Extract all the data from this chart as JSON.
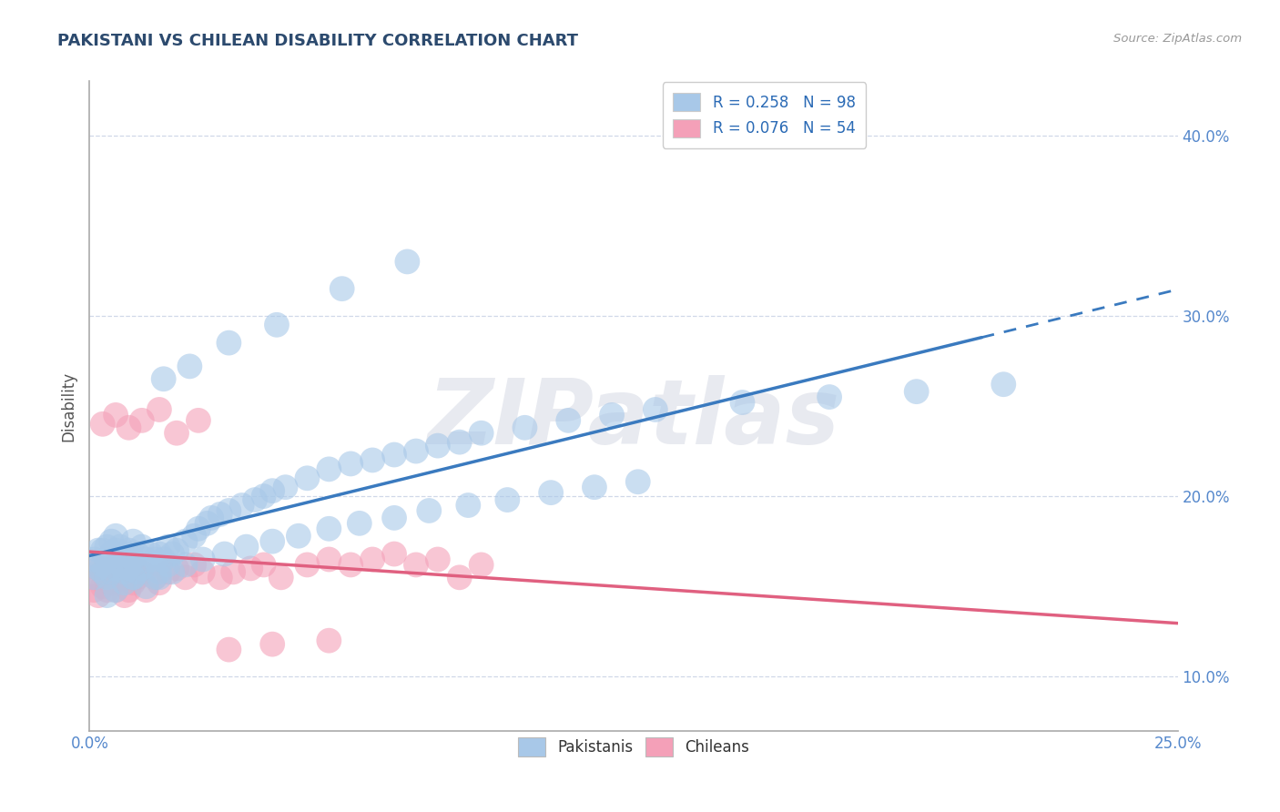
{
  "title": "PAKISTANI VS CHILEAN DISABILITY CORRELATION CHART",
  "source": "Source: ZipAtlas.com",
  "xlim": [
    0.0,
    0.25
  ],
  "ylim": [
    0.07,
    0.43
  ],
  "ylabel": "Disability",
  "r_pakistani": 0.258,
  "n_pakistani": 98,
  "r_chilean": 0.076,
  "n_chilean": 54,
  "color_pakistani_scatter": "#a8c8e8",
  "color_chilean_scatter": "#f4a0b8",
  "color_pakistani_line": "#3a7abf",
  "color_chilean_line": "#e06080",
  "color_title": "#2c4a6e",
  "color_source": "#999999",
  "color_axis_ticks": "#5588cc",
  "color_legend_text": "#2a6ab5",
  "color_grid": "#d0d8e8",
  "background_color": "#ffffff",
  "watermark": "ZIPatlas",
  "watermark_color": "#e8eaf0",
  "pakistani_x": [
    0.001,
    0.001,
    0.002,
    0.002,
    0.003,
    0.003,
    0.003,
    0.004,
    0.004,
    0.004,
    0.005,
    0.005,
    0.005,
    0.006,
    0.006,
    0.006,
    0.007,
    0.007,
    0.008,
    0.008,
    0.009,
    0.009,
    0.01,
    0.01,
    0.01,
    0.011,
    0.011,
    0.012,
    0.012,
    0.013,
    0.014,
    0.015,
    0.015,
    0.016,
    0.016,
    0.017,
    0.018,
    0.018,
    0.019,
    0.02,
    0.022,
    0.024,
    0.025,
    0.027,
    0.028,
    0.03,
    0.032,
    0.035,
    0.038,
    0.04,
    0.042,
    0.045,
    0.05,
    0.055,
    0.06,
    0.065,
    0.07,
    0.075,
    0.08,
    0.085,
    0.09,
    0.1,
    0.11,
    0.12,
    0.13,
    0.15,
    0.17,
    0.19,
    0.21,
    0.004,
    0.006,
    0.008,
    0.01,
    0.013,
    0.016,
    0.019,
    0.022,
    0.026,
    0.031,
    0.036,
    0.042,
    0.048,
    0.055,
    0.062,
    0.07,
    0.078,
    0.087,
    0.096,
    0.106,
    0.116,
    0.126,
    0.017,
    0.023,
    0.032,
    0.043,
    0.058,
    0.073
  ],
  "pakistani_y": [
    0.155,
    0.165,
    0.16,
    0.17,
    0.158,
    0.162,
    0.17,
    0.155,
    0.165,
    0.172,
    0.158,
    0.168,
    0.175,
    0.16,
    0.17,
    0.178,
    0.162,
    0.172,
    0.158,
    0.168,
    0.16,
    0.17,
    0.155,
    0.165,
    0.175,
    0.158,
    0.168,
    0.16,
    0.172,
    0.165,
    0.168,
    0.155,
    0.165,
    0.158,
    0.168,
    0.165,
    0.162,
    0.172,
    0.168,
    0.17,
    0.175,
    0.178,
    0.182,
    0.185,
    0.188,
    0.19,
    0.192,
    0.195,
    0.198,
    0.2,
    0.203,
    0.205,
    0.21,
    0.215,
    0.218,
    0.22,
    0.223,
    0.225,
    0.228,
    0.23,
    0.235,
    0.238,
    0.242,
    0.245,
    0.248,
    0.252,
    0.255,
    0.258,
    0.262,
    0.145,
    0.148,
    0.152,
    0.155,
    0.15,
    0.155,
    0.158,
    0.162,
    0.165,
    0.168,
    0.172,
    0.175,
    0.178,
    0.182,
    0.185,
    0.188,
    0.192,
    0.195,
    0.198,
    0.202,
    0.205,
    0.208,
    0.265,
    0.272,
    0.285,
    0.295,
    0.315,
    0.33
  ],
  "chilean_x": [
    0.001,
    0.001,
    0.002,
    0.002,
    0.003,
    0.003,
    0.004,
    0.004,
    0.005,
    0.005,
    0.006,
    0.006,
    0.007,
    0.007,
    0.008,
    0.008,
    0.009,
    0.009,
    0.01,
    0.01,
    0.011,
    0.012,
    0.013,
    0.015,
    0.016,
    0.018,
    0.02,
    0.022,
    0.024,
    0.026,
    0.03,
    0.033,
    0.037,
    0.04,
    0.044,
    0.05,
    0.055,
    0.06,
    0.065,
    0.07,
    0.075,
    0.08,
    0.085,
    0.09,
    0.003,
    0.006,
    0.009,
    0.012,
    0.016,
    0.02,
    0.025,
    0.032,
    0.042,
    0.055
  ],
  "chilean_y": [
    0.155,
    0.148,
    0.16,
    0.145,
    0.158,
    0.15,
    0.155,
    0.148,
    0.16,
    0.152,
    0.155,
    0.148,
    0.162,
    0.155,
    0.158,
    0.145,
    0.155,
    0.148,
    0.16,
    0.152,
    0.155,
    0.158,
    0.148,
    0.155,
    0.152,
    0.158,
    0.16,
    0.155,
    0.162,
    0.158,
    0.155,
    0.158,
    0.16,
    0.162,
    0.155,
    0.162,
    0.165,
    0.162,
    0.165,
    0.168,
    0.162,
    0.165,
    0.155,
    0.162,
    0.24,
    0.245,
    0.238,
    0.242,
    0.248,
    0.235,
    0.242,
    0.115,
    0.118,
    0.12
  ]
}
